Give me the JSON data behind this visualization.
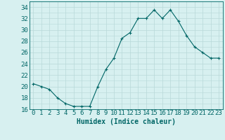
{
  "x": [
    0,
    1,
    2,
    3,
    4,
    5,
    6,
    7,
    8,
    9,
    10,
    11,
    12,
    13,
    14,
    15,
    16,
    17,
    18,
    19,
    20,
    21,
    22,
    23
  ],
  "y": [
    20.5,
    20,
    19.5,
    18,
    17,
    16.5,
    16.5,
    16.5,
    20,
    23,
    25,
    28.5,
    29.5,
    32,
    32,
    33.5,
    32,
    33.5,
    31.5,
    29,
    27,
    26,
    25,
    25
  ],
  "xlabel": "Humidex (Indice chaleur)",
  "xlim": [
    -0.5,
    23.5
  ],
  "ylim": [
    16,
    35
  ],
  "yticks": [
    16,
    18,
    20,
    22,
    24,
    26,
    28,
    30,
    32,
    34
  ],
  "xticks": [
    0,
    1,
    2,
    3,
    4,
    5,
    6,
    7,
    8,
    9,
    10,
    11,
    12,
    13,
    14,
    15,
    16,
    17,
    18,
    19,
    20,
    21,
    22,
    23
  ],
  "xtick_labels": [
    "0",
    "1",
    "2",
    "3",
    "4",
    "5",
    "6",
    "7",
    "8",
    "9",
    "10",
    "11",
    "12",
    "13",
    "14",
    "15",
    "16",
    "17",
    "18",
    "19",
    "20",
    "21",
    "22",
    "23"
  ],
  "line_color": "#006666",
  "marker": "+",
  "bg_color": "#d7f0f0",
  "grid_color": "#b8d8d8",
  "tick_color": "#006666",
  "label_color": "#006666",
  "font_size_xlabel": 7,
  "font_size_ticks": 6.5
}
